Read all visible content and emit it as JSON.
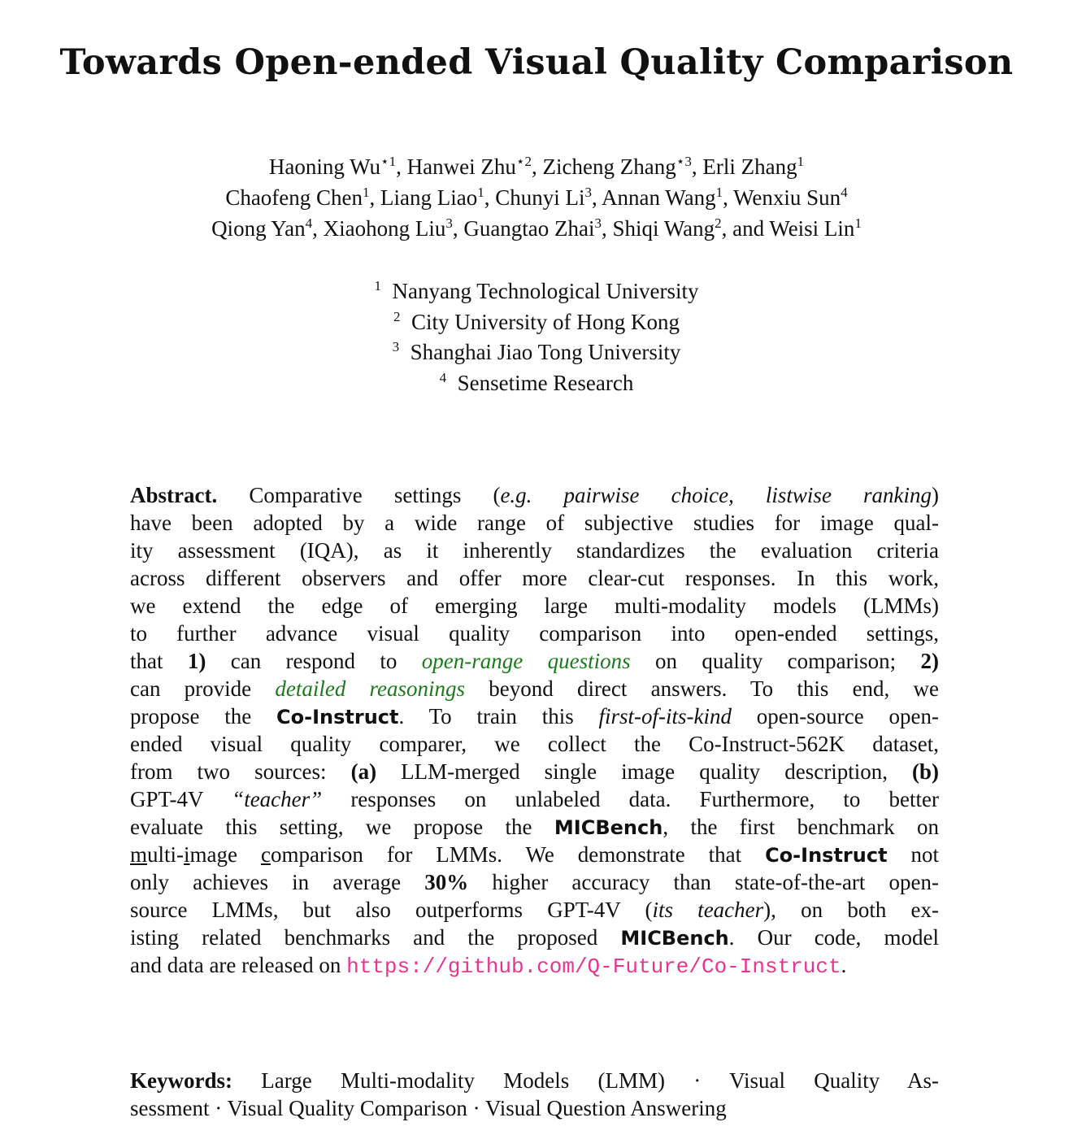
{
  "title": "Towards Open-ended Visual Quality Comparison",
  "authors": [
    [
      {
        "name": "Haoning Wu",
        "sup": "⋆1"
      },
      {
        "name": "Hanwei Zhu",
        "sup": "⋆2"
      },
      {
        "name": "Zicheng Zhang",
        "sup": "⋆3"
      },
      {
        "name": "Erli Zhang",
        "sup": "1"
      }
    ],
    [
      {
        "name": "Chaofeng Chen",
        "sup": "1"
      },
      {
        "name": "Liang Liao",
        "sup": "1"
      },
      {
        "name": "Chunyi Li",
        "sup": "3"
      },
      {
        "name": "Annan Wang",
        "sup": "1"
      },
      {
        "name": "Wenxiu Sun",
        "sup": "4"
      }
    ],
    [
      {
        "name": "Qiong Yan",
        "sup": "4"
      },
      {
        "name": "Xiaohong Liu",
        "sup": "3"
      },
      {
        "name": "Guangtao Zhai",
        "sup": "3"
      },
      {
        "name": "Shiqi Wang",
        "sup": "2"
      },
      {
        "name": "and Weisi Lin",
        "sup": "1"
      }
    ]
  ],
  "affiliations": [
    {
      "sup": "1",
      "name": "Nanyang Technological University"
    },
    {
      "sup": "2",
      "name": "City University of Hong Kong"
    },
    {
      "sup": "3",
      "name": "Shanghai Jiao Tong University"
    },
    {
      "sup": "4",
      "name": "Sensetime Research"
    }
  ],
  "abstract": [
    [
      {
        "t": "Abstract.",
        "s": "bold"
      },
      {
        "t": " Comparative settings ("
      },
      {
        "t": "e.g. pairwise choice, listwise ranking",
        "s": "it"
      },
      {
        "t": ")"
      }
    ],
    [
      {
        "t": "have been adopted by a wide range of subjective studies for image qual-"
      }
    ],
    [
      {
        "t": "ity assessment (IQA), as it inherently standardizes the evaluation criteria"
      }
    ],
    [
      {
        "t": "across different observers and offer more clear-cut responses. In this work,"
      }
    ],
    [
      {
        "t": "we extend the edge of emerging large multi-modality models (LMMs)"
      }
    ],
    [
      {
        "t": "to further advance visual quality comparison into open-ended settings,"
      }
    ],
    [
      {
        "t": "that "
      },
      {
        "t": "1)",
        "s": "bold"
      },
      {
        "t": " can respond to "
      },
      {
        "t": "open-range questions",
        "s": "green"
      },
      {
        "t": " on quality comparison; "
      },
      {
        "t": "2)",
        "s": "bold"
      }
    ],
    [
      {
        "t": "can provide "
      },
      {
        "t": "detailed reasonings",
        "s": "green"
      },
      {
        "t": " beyond direct answers. To this end, we"
      }
    ],
    [
      {
        "t": "propose the "
      },
      {
        "t": "Co-Instruct",
        "s": "sans"
      },
      {
        "t": ". To train this "
      },
      {
        "t": "first-of-its-kind",
        "s": "it"
      },
      {
        "t": " open-source open-"
      }
    ],
    [
      {
        "t": "ended visual quality comparer, we collect the Co-Instruct-562K dataset,"
      }
    ],
    [
      {
        "t": "from two sources: "
      },
      {
        "t": "(a)",
        "s": "bold"
      },
      {
        "t": " LLM-merged single image quality description, "
      },
      {
        "t": "(b)",
        "s": "bold"
      }
    ],
    [
      {
        "t": "GPT-4V "
      },
      {
        "t": "“teacher”",
        "s": "it"
      },
      {
        "t": " responses on unlabeled data. Furthermore, to better"
      }
    ],
    [
      {
        "t": "evaluate this setting, we propose the "
      },
      {
        "t": "MICBench",
        "s": "sans"
      },
      {
        "t": ", the first benchmark on"
      }
    ],
    [
      {
        "t": "m",
        "s": "ul"
      },
      {
        "t": "ulti-"
      },
      {
        "t": "i",
        "s": "ul"
      },
      {
        "t": "mage "
      },
      {
        "t": "c",
        "s": "ul"
      },
      {
        "t": "omparison for LMMs. We demonstrate that "
      },
      {
        "t": "Co-Instruct",
        "s": "sans"
      },
      {
        "t": " not"
      }
    ],
    [
      {
        "t": "only achieves in average "
      },
      {
        "t": "30%",
        "s": "bold"
      },
      {
        "t": " higher accuracy than state-of-the-art open-"
      }
    ],
    [
      {
        "t": "source LMMs, but also outperforms GPT-4V ("
      },
      {
        "t": "its teacher",
        "s": "it"
      },
      {
        "t": "), on both ex-"
      }
    ],
    [
      {
        "t": "isting related benchmarks and the proposed "
      },
      {
        "t": "MICBench",
        "s": "sans"
      },
      {
        "t": ". Our code, model"
      }
    ],
    [
      {
        "t": "and data are released on "
      },
      {
        "t": "https://github.com/Q-Future/Co-Instruct",
        "s": "link"
      },
      {
        "t": "."
      }
    ]
  ],
  "keywords": {
    "label": "Keywords:",
    "lines": [
      "Large Multi-modality Models (LMM) · Visual Quality As-",
      "sessment · Visual Quality Comparison · Visual Question Answering"
    ]
  },
  "colors": {
    "highlight_green": "#1a7a1a",
    "link_pink": "#e8348f"
  }
}
